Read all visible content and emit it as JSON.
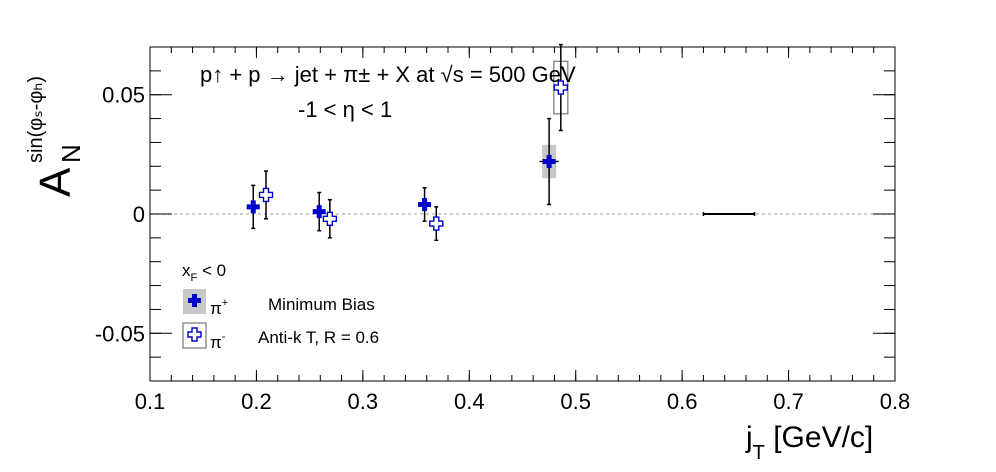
{
  "chart_data": {
    "type": "scatter",
    "title_line1": "p↑ + p → jet + π± + X at  √s = 500 GeV",
    "title_line2": "-1 < η < 1",
    "xlabel_main": "j",
    "xlabel_sub": "T",
    "xlabel_rest": " [GeV/c]",
    "ylabel_main": "A",
    "ylabel_sub": "N",
    "ylabel_sup": "sin(φₛ-φₕ)",
    "xlim": [
      0.1,
      0.8
    ],
    "ylim": [
      -0.07,
      0.07
    ],
    "xticks": [
      0.1,
      0.2,
      0.3,
      0.4,
      0.5,
      0.6,
      0.7,
      0.8
    ],
    "xtick_labels": [
      "0.1",
      "0.2",
      "0.3",
      "0.4",
      "0.5",
      "0.6",
      "0.7",
      "0.8"
    ],
    "yticks": [
      -0.05,
      0,
      0.05
    ],
    "ytick_labels": [
      "-0.05",
      "0",
      "0.05"
    ],
    "zero_line": true,
    "legend": {
      "header_main": "x",
      "header_sub": "F",
      "header_rest": " < 0",
      "entries": [
        {
          "label_main": "π",
          "label_sup": "+",
          "desc": "Minimum Bias"
        },
        {
          "label_main": "π",
          "label_sup": "-",
          "desc": "Anti-k T, R = 0.6"
        }
      ]
    },
    "series": [
      {
        "name": "π+",
        "color": "#0000cc",
        "marker": "filled-cross",
        "points": [
          {
            "x": 0.197,
            "y": 0.003,
            "yerr": 0.009,
            "xerr": 0.003,
            "syst": 0
          },
          {
            "x": 0.259,
            "y": 0.001,
            "yerr": 0.008,
            "xerr": 0.003,
            "syst": 0
          },
          {
            "x": 0.358,
            "y": 0.004,
            "yerr": 0.007,
            "xerr": 0.003,
            "syst": 0
          },
          {
            "x": 0.475,
            "y": 0.022,
            "yerr": 0.018,
            "xerr": 0.009,
            "syst": 0.007
          }
        ]
      },
      {
        "name": "π-",
        "color": "#0000cc",
        "marker": "open-cross",
        "points": [
          {
            "x": 0.209,
            "y": 0.008,
            "yerr": 0.01,
            "xerr": 0.003,
            "syst": 0
          },
          {
            "x": 0.269,
            "y": -0.002,
            "yerr": 0.008,
            "xerr": 0.003,
            "syst": 0
          },
          {
            "x": 0.369,
            "y": -0.004,
            "yerr": 0.007,
            "xerr": 0.003,
            "syst": 0
          },
          {
            "x": 0.486,
            "y": 0.053,
            "yerr": 0.018,
            "xerr": 0.003,
            "syst": 0.011
          }
        ]
      }
    ],
    "scale_bar": {
      "x": [
        0.62,
        0.668
      ],
      "y": 0
    }
  }
}
